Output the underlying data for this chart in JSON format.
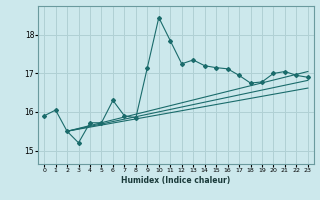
{
  "xlabel": "Humidex (Indice chaleur)",
  "bg_color": "#cce8ec",
  "grid_color": "#b0d0d4",
  "line_color": "#1a6b6b",
  "spine_color": "#6a9a9e",
  "x_ticks": [
    0,
    1,
    2,
    3,
    4,
    5,
    6,
    7,
    8,
    9,
    10,
    11,
    12,
    13,
    14,
    15,
    16,
    17,
    18,
    19,
    20,
    21,
    22,
    23
  ],
  "y_ticks": [
    15,
    16,
    17,
    18
  ],
  "ylim": [
    14.65,
    18.75
  ],
  "xlim": [
    -0.5,
    23.5
  ],
  "main_x": [
    0,
    1,
    2,
    3,
    4,
    5,
    6,
    7,
    8,
    9,
    10,
    11,
    12,
    13,
    14,
    15,
    16,
    17,
    18,
    19,
    20,
    21,
    22,
    23
  ],
  "main_y": [
    15.9,
    16.05,
    15.5,
    15.2,
    15.72,
    15.72,
    16.3,
    15.9,
    15.85,
    17.15,
    18.45,
    17.85,
    17.25,
    17.35,
    17.2,
    17.15,
    17.12,
    16.95,
    16.75,
    16.78,
    17.0,
    17.05,
    16.95,
    16.9
  ],
  "reg_lines": [
    {
      "x": [
        2,
        23
      ],
      "y": [
        15.5,
        17.05
      ]
    },
    {
      "x": [
        2,
        23
      ],
      "y": [
        15.5,
        16.82
      ]
    },
    {
      "x": [
        2,
        23
      ],
      "y": [
        15.5,
        16.62
      ]
    }
  ]
}
